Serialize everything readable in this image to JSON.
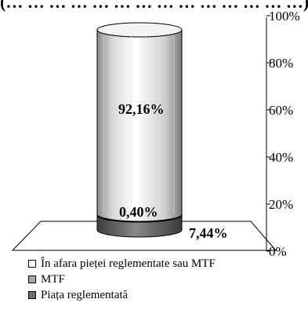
{
  "chart_data": {
    "type": "bar",
    "subtype": "stacked-100-percent-cylinder-3d",
    "title": "(… … … … … … … … … … … … … …)",
    "categories": [
      ""
    ],
    "series": [
      {
        "name": "Piața reglementată",
        "values": [
          7.44
        ],
        "color": "#6e6e6e",
        "label": "7,44%"
      },
      {
        "name": "MTF",
        "values": [
          0.4
        ],
        "color": "#a8a8a8",
        "label": "0,40%"
      },
      {
        "name": "În afara pieței reglementate sau MTF",
        "values": [
          92.16
        ],
        "color": "#ffffff",
        "label": "92,16%"
      }
    ],
    "ylim": [
      0,
      100
    ],
    "yticks": [
      "0%",
      "20%",
      "40%",
      "60%",
      "80%",
      "100%"
    ],
    "grid": false,
    "legend_position": "bottom-left"
  },
  "legend": [
    {
      "label": "În afara pieței reglementate sau MTF",
      "color": "#ffffff"
    },
    {
      "label": "MTF",
      "color": "#a8a8a8"
    },
    {
      "label": "Piața reglementată",
      "color": "#6e6e6e"
    }
  ]
}
